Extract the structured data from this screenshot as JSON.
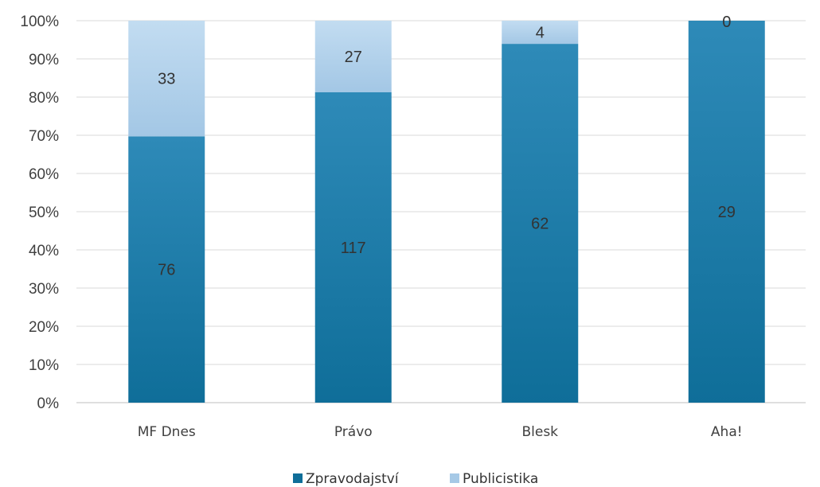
{
  "chart_data": {
    "type": "bar",
    "stacked": "percent",
    "categories": [
      "MF Dnes",
      "Právo",
      "Blesk",
      "Aha!"
    ],
    "series": [
      {
        "name": "Zpravodajství",
        "values": [
          76,
          117,
          62,
          29
        ],
        "color": "#0F6E99",
        "color_light": "#2E8AB8"
      },
      {
        "name": "Publicistika",
        "values": [
          33,
          27,
          4,
          0
        ],
        "color": "#A6C9E6",
        "color_light": "#C2DCF1"
      }
    ],
    "y_ticks": [
      "0%",
      "10%",
      "20%",
      "30%",
      "40%",
      "50%",
      "60%",
      "70%",
      "80%",
      "90%",
      "100%"
    ],
    "ylim": [
      0,
      100
    ],
    "grid": true,
    "legend": "bottom-center",
    "title": "",
    "xlabel": "",
    "ylabel": ""
  }
}
